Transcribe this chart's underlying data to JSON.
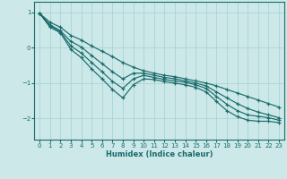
{
  "xlabel": "Humidex (Indice chaleur)",
  "ylabel": "",
  "xlim": [
    -0.5,
    23.5
  ],
  "ylim": [
    -2.6,
    1.3
  ],
  "yticks": [
    -2,
    -1,
    0,
    1
  ],
  "xticks": [
    0,
    1,
    2,
    3,
    4,
    5,
    6,
    7,
    8,
    9,
    10,
    11,
    12,
    13,
    14,
    15,
    16,
    17,
    18,
    19,
    20,
    21,
    22,
    23
  ],
  "background_color": "#cce8e8",
  "grid_color": "#aad4d4",
  "line_color": "#1a6b6b",
  "lines": [
    [
      0.97,
      0.72,
      0.58,
      0.35,
      0.22,
      0.05,
      -0.1,
      -0.25,
      -0.42,
      -0.55,
      -0.65,
      -0.72,
      -0.78,
      -0.82,
      -0.88,
      -0.94,
      -1.0,
      -1.08,
      -1.18,
      -1.28,
      -1.38,
      -1.48,
      -1.58,
      -1.68
    ],
    [
      0.97,
      0.65,
      0.48,
      0.18,
      0.02,
      -0.22,
      -0.45,
      -0.68,
      -0.88,
      -0.72,
      -0.72,
      -0.78,
      -0.84,
      -0.88,
      -0.94,
      -1.0,
      -1.08,
      -1.25,
      -1.42,
      -1.58,
      -1.72,
      -1.82,
      -1.9,
      -1.98
    ],
    [
      0.97,
      0.62,
      0.45,
      0.05,
      -0.15,
      -0.42,
      -0.68,
      -0.95,
      -1.15,
      -0.88,
      -0.78,
      -0.84,
      -0.9,
      -0.94,
      -0.98,
      -1.05,
      -1.15,
      -1.38,
      -1.6,
      -1.78,
      -1.9,
      -1.94,
      -1.98,
      -2.05
    ],
    [
      0.97,
      0.58,
      0.42,
      -0.05,
      -0.28,
      -0.6,
      -0.88,
      -1.18,
      -1.42,
      -1.05,
      -0.88,
      -0.9,
      -0.96,
      -1.0,
      -1.05,
      -1.12,
      -1.25,
      -1.52,
      -1.78,
      -1.95,
      -2.05,
      -2.08,
      -2.08,
      -2.12
    ]
  ]
}
